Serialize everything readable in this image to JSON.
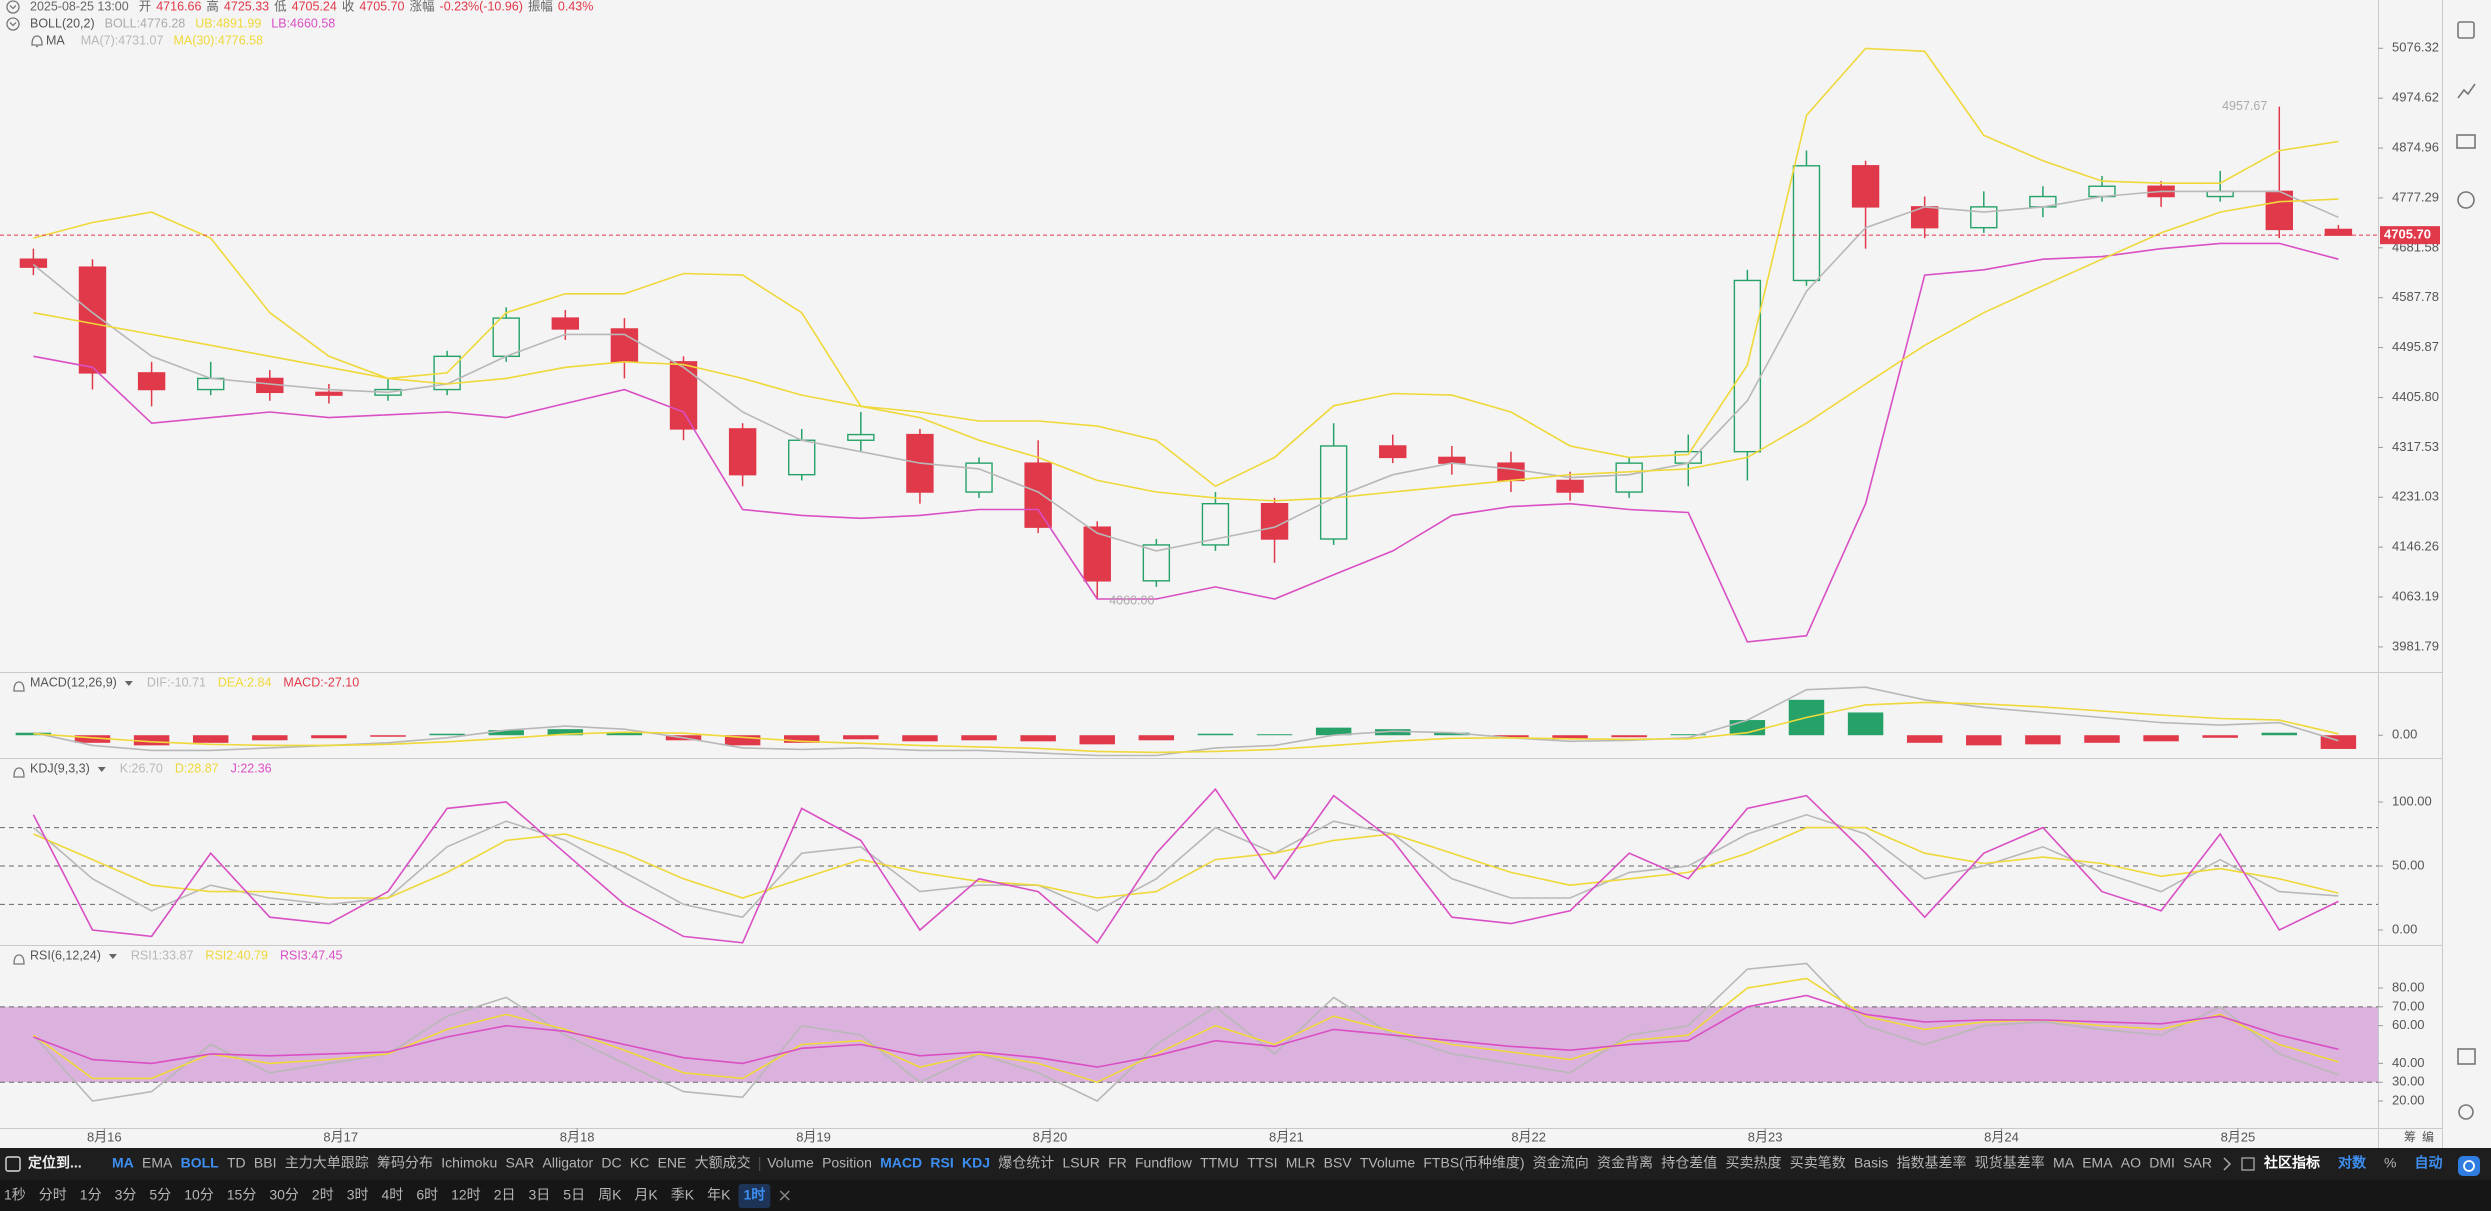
{
  "header": {
    "time": "2025-08-25 13:00",
    "fields": [
      {
        "label": "开",
        "value": "4716.66"
      },
      {
        "label": "高",
        "value": "4725.33"
      },
      {
        "label": "低",
        "value": "4705.24"
      },
      {
        "label": "收",
        "value": "4705.70"
      },
      {
        "label": "涨幅",
        "value": "-0.23%(-10.96)"
      },
      {
        "label": "振幅",
        "value": "0.43%"
      }
    ]
  },
  "chart_data": [
    {
      "type": "candlestick",
      "log": true,
      "ylim": [
        3941.5,
        5176.7
      ],
      "yticks": [
        5076.32,
        4974.62,
        4874.96,
        4777.29,
        4681.58,
        4587.78,
        4495.87,
        {
          "value": 4405.8,
          "label": "4405.80"
        },
        4317.53,
        4231.03,
        4146.26,
        4063.19,
        3981.79
      ],
      "xlim": [
        -0.565,
        39.67
      ],
      "xticks": [
        {
          "value": 1.2,
          "label": "8月16"
        },
        {
          "value": 5.2,
          "label": "8月17"
        },
        {
          "value": 9.2,
          "label": "8月18"
        },
        {
          "value": 13.2,
          "label": "8月19"
        },
        {
          "value": 17.2,
          "label": "8月20"
        },
        {
          "value": 21.2,
          "label": "8月21"
        },
        {
          "value": 25.3,
          "label": "8月22"
        },
        {
          "value": 29.3,
          "label": "8月23"
        },
        {
          "value": 33.3,
          "label": "8月24"
        },
        {
          "value": 37.3,
          "label": "8月25"
        }
      ],
      "up_color": "#26a269",
      "down_color": "#e0394a",
      "open": [
        4660,
        4645,
        4450,
        4420,
        4440,
        4415,
        4410,
        4420,
        4480,
        4550,
        4530,
        4470,
        4350,
        4270,
        4330,
        4340,
        4240,
        4290,
        4180,
        4090,
        4150,
        4220,
        4160,
        4320,
        4300,
        4290,
        4260,
        4240,
        4290,
        4310,
        4620,
        4840,
        4760,
        4720,
        4760,
        4780,
        4800,
        4780,
        4790,
        4716.66
      ],
      "high": [
        4680,
        4660,
        4470,
        4470,
        4455,
        4430,
        4440,
        4490,
        4570,
        4565,
        4550,
        4480,
        4360,
        4350,
        4380,
        4350,
        4300,
        4330,
        4190,
        4160,
        4240,
        4230,
        4360,
        4340,
        4320,
        4310,
        4275,
        4300,
        4340,
        4640,
        4870,
        4850,
        4780,
        4790,
        4800,
        4820,
        4810,
        4830,
        4957.67,
        4725.33
      ],
      "low": [
        4630,
        4420,
        4390,
        4410,
        4400,
        4395,
        4400,
        4410,
        4470,
        4510,
        4440,
        4330,
        4250,
        4260,
        4310,
        4220,
        4230,
        4170,
        4060,
        4080,
        4140,
        4120,
        4150,
        4290,
        4270,
        4240,
        4225,
        4230,
        4250,
        4260,
        4610,
        4680,
        4700,
        4710,
        4740,
        4770,
        4760,
        4770,
        4700,
        4705.24
      ],
      "close": [
        4645,
        4450,
        4420,
        4440,
        4415,
        4410,
        4420,
        4480,
        4550,
        4530,
        4470,
        4350,
        4270,
        4330,
        4340,
        4240,
        4290,
        4180,
        4090,
        4150,
        4220,
        4160,
        4320,
        4300,
        4290,
        4260,
        4240,
        4290,
        4310,
        4620,
        4840,
        4760,
        4720,
        4760,
        4780,
        4800,
        4780,
        4790,
        4716.66,
        4705.7
      ],
      "boll": {
        "title": "BOLL(20,2)",
        "label": "BOLL:4776.28",
        "series": [
          {
            "name": "UB:4891.99",
            "color": "#efd83a",
            "values": [
              4700,
              4730,
              4750,
              4700,
              4560,
              4480,
              4440,
              4450,
              4560,
              4595,
              4595,
              4633,
              4630,
              4560,
              4390,
              4380,
              4364,
              4364,
              4355,
              4330,
              4250,
              4300,
              4391,
              4413,
              4410,
              4380,
              4320,
              4300,
              4305,
              4464,
              4940,
              5076,
              5070,
              4900,
              4850,
              4810,
              4806,
              4806,
              4870,
              4888
            ]
          },
          {
            "name": "LB:4660.58",
            "color": "#d94fc4",
            "values": [
              4480,
              4460,
              4360,
              4370,
              4380,
              4370,
              4375,
              4380,
              4370,
              4395,
              4420,
              4380,
              4210,
              4200,
              4195,
              4200,
              4210,
              4210,
              4060,
              4060,
              4080,
              4060,
              4100,
              4140,
              4200,
              4215,
              4220,
              4210,
              4205,
              3990,
              4000,
              4220,
              4630,
              4640,
              4660,
              4665,
              4680,
              4690,
              4690,
              4660
            ]
          }
        ]
      },
      "ma": {
        "title": "MA",
        "series": [
          {
            "name": "MA(7):4731.07",
            "color": "#b8b8b8",
            "values": [
              4650,
              4560,
              4480,
              4440,
              4430,
              4420,
              4415,
              4430,
              4480,
              4520,
              4520,
              4460,
              4380,
              4330,
              4310,
              4290,
              4280,
              4240,
              4170,
              4140,
              4160,
              4180,
              4230,
              4270,
              4290,
              4280,
              4265,
              4270,
              4290,
              4400,
              4600,
              4720,
              4760,
              4750,
              4760,
              4780,
              4790,
              4790,
              4790,
              4740
            ]
          },
          {
            "name": "MA(30):4776.58",
            "color": "#efd83a",
            "values": [
              4560,
              4540,
              4520,
              4500,
              4480,
              4460,
              4440,
              4430,
              4440,
              4460,
              4470,
              4465,
              4440,
              4410,
              4390,
              4370,
              4330,
              4300,
              4260,
              4240,
              4230,
              4225,
              4230,
              4240,
              4250,
              4260,
              4270,
              4275,
              4280,
              4300,
              4360,
              4430,
              4500,
              4560,
              4610,
              4660,
              4710,
              4750,
              4770,
              4775
            ]
          }
        ]
      },
      "annotations": [
        {
          "x": 38,
          "value": 4957.67,
          "label": "4957.67"
        },
        {
          "x": 18,
          "value": 4060,
          "label": "4060.00"
        }
      ],
      "price_line": {
        "value": 4705.7,
        "label": "4705.70",
        "color": "#e0394a"
      }
    },
    {
      "type": "macd",
      "title": "MACD(12,26,9)",
      "ylim": [
        -45,
        125
      ],
      "yticks": [
        {
          "value": 0,
          "label": "0.00"
        }
      ],
      "series": [
        {
          "name": "DIF:-10.71",
          "color": "#b8b8b8",
          "values": [
            5,
            -20,
            -30,
            -30,
            -25,
            -20,
            -15,
            -5,
            10,
            18,
            12,
            -5,
            -25,
            -28,
            -25,
            -30,
            -30,
            -35,
            -40,
            -40,
            -25,
            -20,
            0,
            8,
            5,
            -5,
            -12,
            -10,
            -5,
            30,
            90,
            95,
            70,
            55,
            45,
            35,
            25,
            20,
            25,
            -10.71
          ]
        },
        {
          "name": "DEA:2.84",
          "color": "#efd83a",
          "values": [
            3,
            -5,
            -13,
            -18,
            -20,
            -20,
            -18,
            -13,
            -6,
            2,
            6,
            4,
            -4,
            -12,
            -16,
            -20,
            -23,
            -26,
            -32,
            -34,
            -32,
            -28,
            -20,
            -12,
            -6,
            -5,
            -7,
            -8,
            -7,
            5,
            35,
            60,
            65,
            62,
            56,
            48,
            40,
            33,
            30,
            2.84
          ]
        }
      ],
      "hist": {
        "name": "MACD:-27.10",
        "up_color": "#26a269",
        "down_color": "#e0394a",
        "values": [
          5,
          -15,
          -20,
          -15,
          -10,
          -6,
          -3,
          3,
          10,
          12,
          5,
          -10,
          -20,
          -15,
          -8,
          -12,
          -10,
          -12,
          -18,
          -10,
          3,
          2,
          15,
          12,
          5,
          -4,
          -8,
          -4,
          2,
          30,
          70,
          45,
          -15,
          -20,
          -18,
          -15,
          -12,
          -5,
          5,
          -27.1
        ]
      }
    },
    {
      "type": "line",
      "title": "KDJ(9,3,3)",
      "ylim": [
        -11.7,
        134.4
      ],
      "yticks": [
        {
          "value": 100,
          "label": "100.00"
        },
        {
          "value": 50,
          "label": "50.00"
        },
        {
          "value": 0,
          "label": "0.00"
        }
      ],
      "dashed_levels": [
        80,
        50,
        20
      ],
      "series": [
        {
          "name": "K:26.70",
          "color": "#b8b8b8",
          "values": [
            80,
            40,
            15,
            35,
            25,
            20,
            25,
            65,
            85,
            70,
            45,
            20,
            10,
            60,
            65,
            30,
            35,
            35,
            15,
            40,
            80,
            60,
            85,
            75,
            40,
            25,
            25,
            45,
            50,
            75,
            90,
            75,
            40,
            50,
            65,
            45,
            30,
            55,
            30,
            26.7
          ]
        },
        {
          "name": "D:28.87",
          "color": "#efd83a",
          "values": [
            75,
            55,
            35,
            30,
            30,
            25,
            25,
            45,
            70,
            75,
            60,
            40,
            25,
            40,
            55,
            45,
            38,
            35,
            25,
            30,
            55,
            60,
            70,
            75,
            60,
            45,
            35,
            40,
            45,
            60,
            80,
            80,
            60,
            52,
            57,
            52,
            42,
            48,
            40,
            28.87
          ]
        },
        {
          "name": "J:22.36",
          "color": "#d94fc4",
          "values": [
            90,
            0,
            -5,
            60,
            10,
            5,
            30,
            95,
            100,
            60,
            20,
            -5,
            -10,
            95,
            70,
            0,
            40,
            30,
            -10,
            60,
            110,
            40,
            105,
            70,
            10,
            5,
            15,
            60,
            40,
            95,
            105,
            60,
            10,
            60,
            80,
            30,
            15,
            75,
            0,
            22.36
          ]
        }
      ]
    },
    {
      "type": "line",
      "title": "RSI(6,12,24)",
      "ylim": [
        5.7,
        102.8
      ],
      "yticks": [
        {
          "value": 80,
          "label": "80.00"
        },
        {
          "value": 70,
          "label": "70.00"
        },
        {
          "value": 60,
          "label": "60.00"
        },
        {
          "value": 40,
          "label": "40.00"
        },
        {
          "value": 30,
          "label": "30.00"
        },
        {
          "value": 20,
          "label": "20.00"
        }
      ],
      "band": [
        30,
        70
      ],
      "band_color": "#d6a6d8",
      "dashed_levels": [
        70,
        30
      ],
      "series": [
        {
          "name": "RSI1:33.87",
          "color": "#b8b8b8",
          "values": [
            55,
            20,
            25,
            50,
            35,
            40,
            45,
            65,
            75,
            55,
            40,
            25,
            22,
            60,
            55,
            30,
            45,
            35,
            20,
            50,
            70,
            45,
            75,
            55,
            45,
            40,
            35,
            55,
            60,
            90,
            93,
            60,
            50,
            60,
            62,
            58,
            55,
            70,
            45,
            33.87
          ]
        },
        {
          "name": "RSI2:40.79",
          "color": "#efd83a",
          "values": [
            55,
            32,
            32,
            45,
            40,
            42,
            45,
            58,
            66,
            58,
            47,
            35,
            32,
            50,
            52,
            38,
            45,
            40,
            30,
            45,
            60,
            50,
            65,
            57,
            50,
            46,
            42,
            52,
            55,
            80,
            85,
            65,
            58,
            62,
            63,
            60,
            58,
            66,
            50,
            40.79
          ]
        },
        {
          "name": "RSI3:47.45",
          "color": "#d94fc4",
          "values": [
            54,
            42,
            40,
            45,
            44,
            45,
            46,
            54,
            60,
            57,
            50,
            43,
            40,
            48,
            50,
            44,
            46,
            43,
            38,
            44,
            52,
            49,
            58,
            55,
            52,
            49,
            47,
            50,
            52,
            70,
            76,
            66,
            62,
            63,
            63,
            62,
            61,
            65,
            55,
            47.45
          ]
        }
      ]
    }
  ],
  "corner_text": [
    "筹",
    "编"
  ],
  "toolbar": {
    "locate": "定位到...",
    "overlays": [
      {
        "label": "MA",
        "active": true
      },
      {
        "label": "EMA"
      },
      {
        "label": "BOLL",
        "active": true
      },
      {
        "label": "TD"
      },
      {
        "label": "BBI"
      },
      {
        "label": "主力大单跟踪"
      },
      {
        "label": "筹码分布"
      },
      {
        "label": "Ichimoku"
      },
      {
        "label": "SAR"
      },
      {
        "label": "Alligator"
      },
      {
        "label": "DC"
      },
      {
        "label": "KC"
      },
      {
        "label": "ENE"
      },
      {
        "label": "大额成交"
      }
    ],
    "indicators": [
      {
        "label": "Volume"
      },
      {
        "label": "Position"
      },
      {
        "label": "MACD",
        "active": true
      },
      {
        "label": "RSI",
        "active": true
      },
      {
        "label": "KDJ",
        "active": true
      },
      {
        "label": "爆仓统计"
      },
      {
        "label": "LSUR"
      },
      {
        "label": "FR"
      },
      {
        "label": "Fundflow"
      },
      {
        "label": "TTMU"
      },
      {
        "label": "TTSI"
      },
      {
        "label": "MLR"
      },
      {
        "label": "BSV"
      },
      {
        "label": "TVolume"
      },
      {
        "label": "FTBS(币种维度)"
      },
      {
        "label": "资金流向"
      },
      {
        "label": "资金背离"
      },
      {
        "label": "持仓差值"
      },
      {
        "label": "买卖热度"
      },
      {
        "label": "买卖笔数"
      },
      {
        "label": "Basis"
      },
      {
        "label": "指数基差率"
      },
      {
        "label": "现货基差率"
      },
      {
        "label": "MA"
      },
      {
        "label": "EMA"
      },
      {
        "label": "AO"
      },
      {
        "label": "DMI"
      },
      {
        "label": "SAR"
      }
    ],
    "right": [
      {
        "label": "社区指标",
        "strong": true
      },
      {
        "label": "对数",
        "active": true
      },
      {
        "label": "%"
      },
      {
        "label": "自动",
        "active": true
      }
    ]
  },
  "timeframes": [
    {
      "label": "1秒"
    },
    {
      "label": "分时"
    },
    {
      "label": "1分"
    },
    {
      "label": "3分"
    },
    {
      "label": "5分"
    },
    {
      "label": "10分"
    },
    {
      "label": "15分"
    },
    {
      "label": "30分"
    },
    {
      "label": "2时"
    },
    {
      "label": "3时"
    },
    {
      "label": "4时"
    },
    {
      "label": "6时"
    },
    {
      "label": "12时"
    },
    {
      "label": "2日"
    },
    {
      "label": "3日"
    },
    {
      "label": "5日"
    },
    {
      "label": "周K"
    },
    {
      "label": "月K"
    },
    {
      "label": "季K"
    },
    {
      "label": "年K"
    },
    {
      "label": "1时",
      "active": true
    }
  ]
}
